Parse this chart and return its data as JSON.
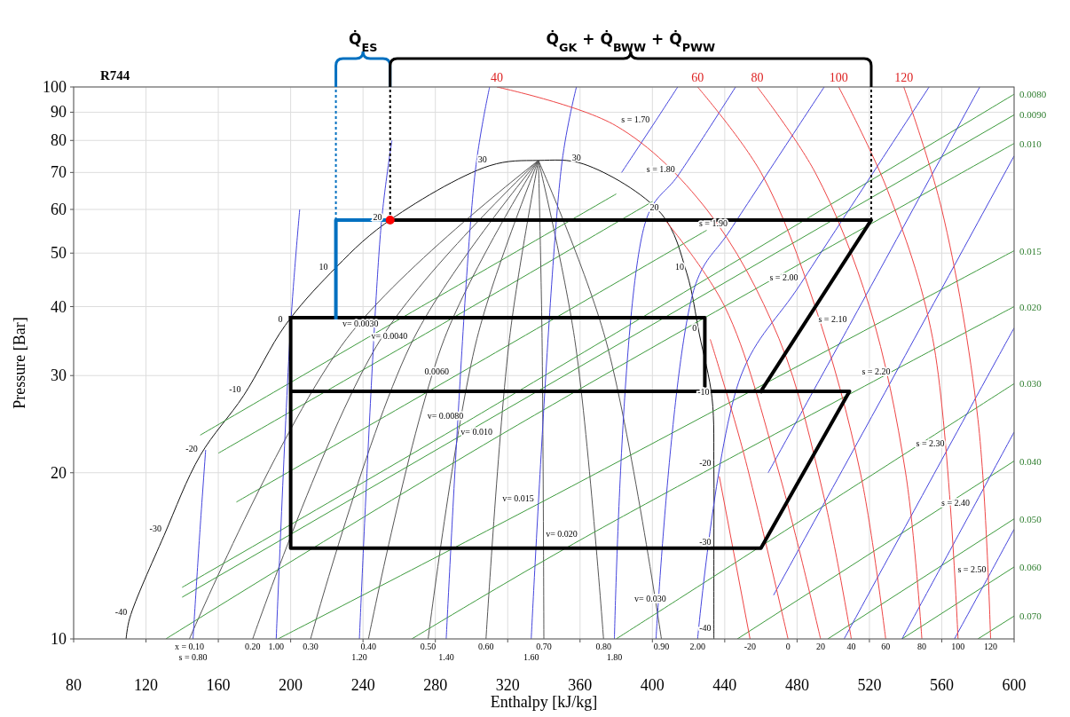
{
  "chart_data": {
    "type": "line",
    "title": "R744",
    "xlabel": "Enthalpy [kJ/kg]",
    "ylabel": "Pressure [Bar]",
    "log": "y",
    "grid": true,
    "xlim": [
      80,
      600
    ],
    "xticks": [
      80,
      120,
      160,
      200,
      240,
      280,
      320,
      360,
      400,
      440,
      480,
      520,
      560,
      600
    ],
    "ylim": [
      10,
      100
    ],
    "yticks": [
      10,
      20,
      30,
      40,
      50,
      60,
      70,
      80,
      90,
      100
    ],
    "series": [
      {
        "color": "#111111",
        "x": [
          109,
          111,
          130,
          150,
          174,
          197,
          222,
          252,
          310,
          337,
          362,
          405,
          419,
          426,
          433,
          434,
          434,
          434,
          434
        ],
        "values": [
          10,
          10.9,
          15.4,
          21.5,
          27.6,
          37,
          46,
          56.5,
          72,
          73.6,
          72.5,
          58.9,
          46,
          35.6,
          27.3,
          20.3,
          14.6,
          10.2,
          10
        ]
      },
      {
        "color": "#3d9a3d",
        "x": [
          150,
          250,
          380
        ],
        "values": [
          23.4,
          36.3,
          64
        ]
      },
      {
        "color": "#3d9a3d",
        "x": [
          160,
          266,
          400
        ],
        "values": [
          21.7,
          34.4,
          62
        ]
      },
      {
        "color": "#3d9a3d",
        "x": [
          170,
          289,
          430
        ],
        "values": [
          17.7,
          29.7,
          55
        ]
      },
      {
        "color": "#555555",
        "x": [
          144,
          231,
          337
        ],
        "values": [
          10,
          35,
          73.6
        ]
      },
      {
        "color": "#555555",
        "x": [
          179,
          250,
          337
        ],
        "values": [
          10,
          35,
          73.6
        ]
      },
      {
        "color": "#555555",
        "x": [
          211,
          268,
          337
        ],
        "values": [
          10,
          35,
          73.6
        ]
      },
      {
        "color": "#555555",
        "x": [
          243,
          285,
          337
        ],
        "values": [
          10,
          35,
          73.6
        ]
      },
      {
        "color": "#555555",
        "x": [
          276,
          303,
          337
        ],
        "values": [
          10,
          35,
          73.6
        ]
      },
      {
        "color": "#555555",
        "x": [
          308,
          321,
          337
        ],
        "values": [
          10,
          35,
          73.6
        ]
      },
      {
        "color": "#555555",
        "x": [
          340,
          339,
          337
        ],
        "values": [
          10,
          35,
          73.6
        ]
      },
      {
        "color": "#555555",
        "x": [
          373,
          357,
          337
        ],
        "values": [
          10,
          35,
          73.6
        ]
      },
      {
        "color": "#555555",
        "x": [
          405,
          374,
          337
        ],
        "values": [
          10,
          35,
          73.6
        ]
      },
      {
        "color": "#3d9a3d",
        "x": [
          140,
          297,
          600
        ],
        "values": [
          12.4,
          24.7,
          97
        ]
      },
      {
        "color": "#3d9a3d",
        "x": [
          140,
          600
        ],
        "values": [
          11.9,
          89
        ]
      },
      {
        "color": "#3d9a3d",
        "x": [
          131,
          313,
          600
        ],
        "values": [
          10,
          23.1,
          79
        ]
      },
      {
        "color": "#3d9a3d",
        "x": [
          193,
          336,
          600
        ],
        "values": [
          10,
          17.5,
          50.5
        ]
      },
      {
        "color": "#3d9a3d",
        "x": [
          267,
          360,
          600
        ],
        "values": [
          10,
          15.1,
          40
        ]
      },
      {
        "color": "#3d9a3d",
        "x": [
          380,
          409,
          600
        ],
        "values": [
          10,
          11.5,
          29
        ]
      },
      {
        "color": "#3d9a3d",
        "x": [
          447,
          600
        ],
        "values": [
          10,
          21
        ]
      },
      {
        "color": "#3d9a3d",
        "x": [
          497,
          600
        ],
        "values": [
          10,
          16.5
        ]
      },
      {
        "color": "#3d9a3d",
        "x": [
          538,
          600
        ],
        "values": [
          10,
          13.5
        ]
      },
      {
        "color": "#3d9a3d",
        "x": [
          580,
          600
        ],
        "values": [
          10,
          11
        ]
      },
      {
        "color": "#4444dd",
        "x": [
          146,
          150,
          153
        ],
        "values": [
          10,
          16,
          22
        ]
      },
      {
        "color": "#4444dd",
        "x": [
          192,
          200,
          205
        ],
        "values": [
          10,
          37,
          60
        ]
      },
      {
        "color": "#4444dd",
        "x": [
          238,
          250,
          256
        ],
        "values": [
          10,
          56,
          80
        ]
      },
      {
        "color": "#4444dd",
        "x": [
          286,
          302,
          310
        ],
        "values": [
          10,
          70,
          100
        ]
      },
      {
        "color": "#4444dd",
        "x": [
          333,
          350,
          358
        ],
        "values": [
          10,
          73,
          100
        ]
      },
      {
        "color": "#4444dd",
        "x": [
          383,
          400,
          414
        ],
        "values": [
          70,
          85,
          100
        ]
      },
      {
        "color": "#4444dd",
        "x": [
          379,
          397,
          414,
          446
        ],
        "values": [
          10,
          58,
          69,
          100
        ]
      },
      {
        "color": "#4444dd",
        "x": [
          402,
          424,
          443,
          495
        ],
        "values": [
          10,
          44,
          55,
          100
        ]
      },
      {
        "color": "#4444dd",
        "x": [
          425,
          449,
          482,
          553
        ],
        "values": [
          10,
          30,
          44,
          100
        ]
      },
      {
        "color": "#4444dd",
        "x": [
          464,
          509,
          581
        ],
        "values": [
          20,
          37,
          100
        ]
      },
      {
        "color": "#4444dd",
        "x": [
          467,
          533,
          600
        ],
        "values": [
          12,
          29.7,
          75
        ]
      },
      {
        "color": "#4444dd",
        "x": [
          506,
          563,
          600
        ],
        "values": [
          10,
          22,
          36.6
        ]
      },
      {
        "color": "#4444dd",
        "x": [
          538,
          577,
          600
        ],
        "values": [
          10,
          17.2,
          23.7
        ]
      },
      {
        "color": "#4444dd",
        "x": [
          567,
          586,
          600
        ],
        "values": [
          10,
          13,
          15.8
        ]
      },
      {
        "color": "#ee4444",
        "x": [
          437,
          454
        ],
        "values": [
          19.7,
          10
        ]
      },
      {
        "color": "#ee4444",
        "x": [
          432,
          450,
          475
        ],
        "values": [
          34.9,
          22,
          10
        ]
      },
      {
        "color": "#ee4444",
        "x": [
          407,
          440,
          470,
          493
        ],
        "values": [
          57.4,
          40,
          20,
          10
        ]
      },
      {
        "color": "#ee4444",
        "x": [
          314,
          380,
          430,
          470,
          495,
          510
        ],
        "values": [
          100,
          85,
          60,
          35,
          18,
          10
        ]
      },
      {
        "color": "#ee4444",
        "x": [
          425,
          460,
          490,
          515,
          529
        ],
        "values": [
          100,
          70,
          40,
          20,
          10
        ]
      },
      {
        "color": "#ee4444",
        "x": [
          458,
          490,
          520,
          540,
          549
        ],
        "values": [
          100,
          70,
          40,
          20,
          10
        ]
      },
      {
        "color": "#ee4444",
        "x": [
          503,
          530,
          555,
          569
        ],
        "values": [
          100,
          65,
          35,
          10
        ]
      },
      {
        "color": "#ee4444",
        "x": [
          539,
          560,
          580,
          587
        ],
        "values": [
          100,
          60,
          25,
          10
        ]
      },
      {
        "color": "#000000",
        "x": [
          255,
          521,
          460
        ],
        "values": [
          57.4,
          57.4,
          28.1
        ]
      },
      {
        "color": "#000000",
        "x": [
          200,
          429,
          429
        ],
        "values": [
          38.2,
          38.2,
          28.1
        ]
      },
      {
        "color": "#000000",
        "x": [
          200,
          509,
          460,
          200,
          200
        ],
        "values": [
          28.1,
          28.1,
          14.6,
          14.6,
          38.2
        ]
      },
      {
        "color": "#0070c0",
        "x": [
          225,
          225,
          255
        ],
        "values": [
          38.2,
          57.4,
          57.4
        ]
      },
      {
        "color": "#0070c0",
        "line_style": "dotted",
        "x": [
          225,
          225
        ],
        "values": [
          57.4,
          100
        ]
      },
      {
        "color": "#000000",
        "line_style": "dotted",
        "x": [
          255,
          255
        ],
        "values": [
          57.4,
          100
        ]
      },
      {
        "color": "#000000",
        "line_style": "dotted",
        "x": [
          521,
          521
        ],
        "values": [
          57.4,
          100
        ]
      },
      {
        "type": "scatter",
        "marker": "circle",
        "color": "#ff0000",
        "x": [
          255
        ],
        "values": [
          57.4
        ]
      }
    ],
    "annotations": [
      "Q̇$_{ES}$",
      "Q̇$_{GK}$ + Q̇$_{BWW}$ + Q̇$_{PWW}$",
      {
        "text": "-40",
        "x": 111,
        "y": 10.9
      },
      {
        "text": "-30",
        "x": 130,
        "y": 15.4
      },
      {
        "text": "-20",
        "x": 150,
        "y": 21.5
      },
      {
        "text": "-10",
        "x": 174,
        "y": 27.6
      },
      {
        "text": "0",
        "x": 197,
        "y": 37
      },
      {
        "text": "10",
        "x": 222,
        "y": 46
      },
      {
        "text": "20",
        "x": 252,
        "y": 56.5
      },
      {
        "text": "30",
        "x": 310,
        "y": 72
      },
      {
        "text": "30",
        "x": 362,
        "y": 72.5
      },
      {
        "text": "20",
        "x": 405,
        "y": 58.9
      },
      {
        "text": "10",
        "x": 419,
        "y": 46
      },
      {
        "text": "0",
        "x": 426,
        "y": 35.6
      },
      {
        "text": "-10",
        "x": 433,
        "y": 27.3
      },
      {
        "text": "-20",
        "x": 434,
        "y": 20.3
      },
      {
        "text": "-30",
        "x": 434,
        "y": 14.6
      },
      {
        "text": "-40",
        "x": 434,
        "y": 10.2
      },
      {
        "text": "40",
        "x": 314,
        "y": 100
      },
      {
        "text": "60",
        "x": 425,
        "y": 100
      },
      {
        "text": "80",
        "x": 458,
        "y": 100
      },
      {
        "text": "100",
        "x": 503,
        "y": 100
      },
      {
        "text": "120",
        "x": 539,
        "y": 100
      },
      {
        "text": "-20",
        "x": 454,
        "y": 10
      },
      {
        "text": "0",
        "x": 475,
        "y": 10
      },
      {
        "text": "20",
        "x": 493,
        "y": 10
      },
      {
        "text": "40",
        "x": 510,
        "y": 10
      },
      {
        "text": "60",
        "x": 529,
        "y": 10
      },
      {
        "text": "80",
        "x": 549,
        "y": 10
      },
      {
        "text": "100",
        "x": 569,
        "y": 10
      },
      {
        "text": "120",
        "x": 587,
        "y": 10
      },
      {
        "text": "x = 0.10",
        "x": 144,
        "y": 10
      },
      {
        "text": "0.20",
        "x": 179,
        "y": 10
      },
      {
        "text": "0.30",
        "x": 211,
        "y": 10
      },
      {
        "text": "0.40",
        "x": 243,
        "y": 10
      },
      {
        "text": "0.50",
        "x": 276,
        "y": 10
      },
      {
        "text": "0.60",
        "x": 308,
        "y": 10
      },
      {
        "text": "0.70",
        "x": 340,
        "y": 10
      },
      {
        "text": "0.80",
        "x": 373,
        "y": 10
      },
      {
        "text": "0.90",
        "x": 405,
        "y": 10
      },
      {
        "text": "s = 0.80",
        "x": 146,
        "y": 10
      },
      {
        "text": "1.00",
        "x": 192,
        "y": 10
      },
      {
        "text": "1.20",
        "x": 238,
        "y": 10
      },
      {
        "text": "1.40",
        "x": 286,
        "y": 10
      },
      {
        "text": "1.60",
        "x": 333,
        "y": 10
      },
      {
        "text": "1.80",
        "x": 379,
        "y": 10
      },
      {
        "text": "2.00",
        "x": 425,
        "y": 10
      },
      {
        "text": "0.0080",
        "x": 600,
        "y": 97
      },
      {
        "text": "0.0090",
        "x": 600,
        "y": 89
      },
      {
        "text": "0.010",
        "x": 600,
        "y": 79
      },
      {
        "text": "0.015",
        "x": 600,
        "y": 50.5
      },
      {
        "text": "0.020",
        "x": 600,
        "y": 40
      },
      {
        "text": "0.030",
        "x": 600,
        "y": 29
      },
      {
        "text": "0.040",
        "x": 600,
        "y": 21
      },
      {
        "text": "0.050",
        "x": 600,
        "y": 16.5
      },
      {
        "text": "0.060",
        "x": 600,
        "y": 13.5
      },
      {
        "text": "0.070",
        "x": 600,
        "y": 11
      },
      {
        "text": "v= 0.0030",
        "x": 250,
        "y": 36.3
      },
      {
        "text": "v= 0.0040",
        "x": 266,
        "y": 34.4
      },
      {
        "text": "0.0060",
        "x": 289,
        "y": 29.7
      },
      {
        "text": "v= 0.0080",
        "x": 297,
        "y": 24.7
      },
      {
        "text": "v= 0.010",
        "x": 313,
        "y": 23.1
      },
      {
        "text": "v= 0.015",
        "x": 336,
        "y": 17.5
      },
      {
        "text": "v= 0.020",
        "x": 360,
        "y": 15.1
      },
      {
        "text": "v= 0.030",
        "x": 409,
        "y": 11.5
      },
      {
        "text": "s = 1.70",
        "x": 400,
        "y": 85
      },
      {
        "text": "s = 1.80",
        "x": 414,
        "y": 69
      },
      {
        "text": "s = 1.90",
        "x": 443,
        "y": 55
      },
      {
        "text": "s = 2.00",
        "x": 482,
        "y": 44
      },
      {
        "text": "s = 2.10",
        "x": 509,
        "y": 37
      },
      {
        "text": "s = 2.20",
        "x": 533,
        "y": 29.7
      },
      {
        "text": "s = 2.30",
        "x": 563,
        "y": 22
      },
      {
        "text": "s = 2.40",
        "x": 577,
        "y": 17.2
      },
      {
        "text": "s = 2.50",
        "x": 586,
        "y": 13
      }
    ]
  }
}
